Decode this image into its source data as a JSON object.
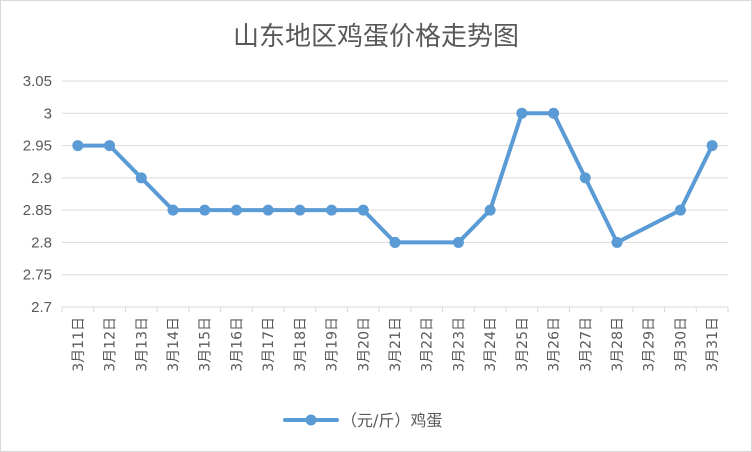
{
  "chart_data": {
    "type": "line",
    "title": "山东地区鸡蛋价格走势图",
    "categories": [
      "3月11日",
      "3月12日",
      "3月13日",
      "3月14日",
      "3月15日",
      "3月16日",
      "3月17日",
      "3月18日",
      "3月19日",
      "3月20日",
      "3月21日",
      "3月22日",
      "3月23日",
      "3月24日",
      "3月25日",
      "3月26日",
      "3月27日",
      "3月28日",
      "3月29日",
      "3月30日",
      "3月31日"
    ],
    "series": [
      {
        "name": "（元/斤）鸡蛋",
        "values": [
          2.95,
          2.95,
          2.9,
          2.85,
          2.85,
          2.85,
          2.85,
          2.85,
          2.85,
          2.85,
          2.8,
          null,
          2.8,
          2.85,
          3.0,
          3.0,
          2.9,
          2.8,
          null,
          2.85,
          2.95
        ],
        "color": "#5b9bd5"
      }
    ],
    "yticks": [
      "2.7",
      "2.75",
      "2.8",
      "2.85",
      "2.9",
      "2.95",
      "3",
      "3.05"
    ],
    "ylim": [
      2.7,
      3.05
    ],
    "grid": true,
    "legend_position": "bottom",
    "connect_gaps": true
  }
}
